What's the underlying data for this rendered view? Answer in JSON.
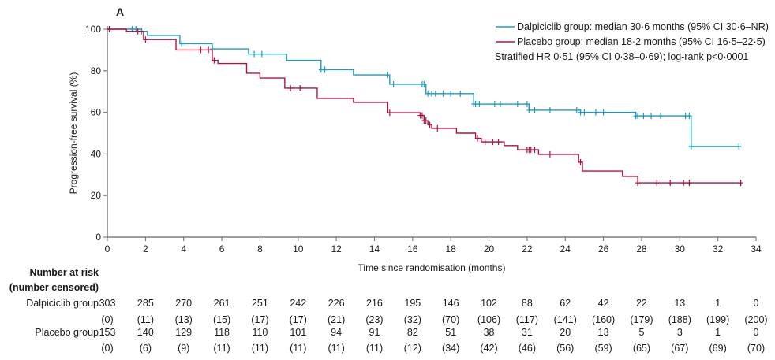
{
  "chart_data": {
    "type": "line",
    "panel_label": "A",
    "xlabel": "Time since randomisation (months)",
    "ylabel": "Progression-free survival (%)",
    "xlim": [
      0,
      34
    ],
    "ylim": [
      0,
      100
    ],
    "xticks": [
      0,
      2,
      4,
      6,
      8,
      10,
      12,
      14,
      16,
      18,
      20,
      22,
      24,
      26,
      28,
      30,
      32,
      34
    ],
    "yticks": [
      0,
      20,
      40,
      60,
      80,
      100
    ],
    "grid": false,
    "legend_placement": "top-right",
    "legend": [
      {
        "label": "Dalpiciclib group: median 30·6 months (95% CI 30·6–NR)",
        "color": "#1b9ec4"
      },
      {
        "label": "Placebo group: median 18·2 months (95% CI 16·5–22·5)",
        "color": "#b3123f"
      }
    ],
    "annotation": "Stratified HR 0·51 (95% CI 0·38–0·69); log-rank p<0·0001",
    "series": [
      {
        "name": "Dalpiciclib group",
        "color": "#1b9ec4",
        "steps": [
          [
            0,
            100
          ],
          [
            1.8,
            99
          ],
          [
            2.1,
            97
          ],
          [
            3.8,
            93
          ],
          [
            5.5,
            90.5
          ],
          [
            7.4,
            88
          ],
          [
            9.4,
            85
          ],
          [
            11.2,
            80.5
          ],
          [
            12.9,
            78
          ],
          [
            14.8,
            73.5
          ],
          [
            16.7,
            69
          ],
          [
            19.2,
            64
          ],
          [
            22.1,
            61
          ],
          [
            24.8,
            60
          ],
          [
            27.7,
            58.3
          ],
          [
            30.6,
            43.6
          ]
        ],
        "end": 33.1,
        "censored": [
          1.3,
          1.5,
          1.8,
          3.9,
          5.5,
          7.7,
          8.1,
          11.2,
          11.4,
          14.7,
          15.0,
          16.5,
          16.6,
          16.8,
          17.0,
          17.2,
          17.6,
          18.0,
          18.5,
          19.2,
          19.3,
          19.5,
          20.3,
          20.6,
          21.5,
          22.0,
          22.1,
          22.4,
          23.2,
          24.6,
          24.8,
          25.0,
          25.6,
          26.0,
          27.7,
          27.8,
          28.1,
          28.5,
          29.0,
          30.3,
          30.5,
          30.6,
          33.1
        ]
      },
      {
        "name": "Placebo group",
        "color": "#b3123f",
        "steps": [
          [
            0,
            100
          ],
          [
            1.0,
            99
          ],
          [
            1.9,
            95
          ],
          [
            3.6,
            90
          ],
          [
            5.5,
            85
          ],
          [
            5.8,
            83.5
          ],
          [
            7.3,
            78.8
          ],
          [
            8.0,
            76.5
          ],
          [
            9.3,
            71.6
          ],
          [
            11.0,
            66.7
          ],
          [
            12.9,
            64.8
          ],
          [
            14.7,
            59.8
          ],
          [
            16.4,
            58.5
          ],
          [
            16.6,
            56
          ],
          [
            16.8,
            54
          ],
          [
            17.0,
            52.3
          ],
          [
            18.3,
            50
          ],
          [
            19.3,
            47.5
          ],
          [
            19.6,
            45.8
          ],
          [
            20.8,
            44
          ],
          [
            21.5,
            42
          ],
          [
            22.6,
            39.8
          ],
          [
            24.7,
            36
          ],
          [
            24.9,
            31.8
          ],
          [
            27.0,
            29.2
          ],
          [
            27.8,
            26.1
          ]
        ],
        "end": 33.2,
        "censored": [
          0.1,
          1.6,
          2.0,
          4.9,
          5.3,
          5.6,
          9.6,
          10.1,
          14.8,
          16.4,
          16.5,
          16.6,
          16.7,
          16.9,
          17.3,
          19.4,
          19.8,
          20.2,
          20.5,
          22.0,
          22.1,
          22.2,
          22.4,
          23.2,
          24.8,
          27.8,
          28.8,
          29.5,
          30.2,
          30.5,
          33.2
        ]
      }
    ],
    "risk_table": {
      "title_line1": "Number at risk",
      "title_line2": "(number censored)",
      "rows": [
        {
          "group": "Dalpiciclib group",
          "at_risk": [
            "303",
            "285",
            "270",
            "261",
            "251",
            "242",
            "226",
            "216",
            "195",
            "146",
            "102",
            "88",
            "62",
            "42",
            "22",
            "13",
            "1",
            "0"
          ],
          "censored": [
            "(0)",
            "(11)",
            "(13)",
            "(15)",
            "(17)",
            "(17)",
            "(21)",
            "(23)",
            "(32)",
            "(70)",
            "(106)",
            "(117)",
            "(141)",
            "(160)",
            "(179)",
            "(188)",
            "(199)",
            "(200)"
          ]
        },
        {
          "group": "Placebo group",
          "at_risk": [
            "153",
            "140",
            "129",
            "118",
            "110",
            "101",
            "94",
            "91",
            "82",
            "51",
            "38",
            "31",
            "20",
            "13",
            "5",
            "3",
            "1",
            "0"
          ],
          "censored": [
            "(0)",
            "(6)",
            "(9)",
            "(11)",
            "(11)",
            "(11)",
            "(11)",
            "(11)",
            "(12)",
            "(34)",
            "(42)",
            "(46)",
            "(56)",
            "(59)",
            "(65)",
            "(67)",
            "(69)",
            "(70)"
          ]
        }
      ]
    }
  }
}
